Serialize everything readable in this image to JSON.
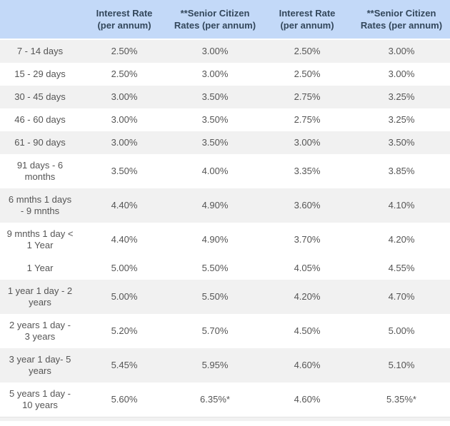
{
  "colors": {
    "header_bg": "#c3d9f8",
    "header_text": "#33475b",
    "shaded_row_bg": "#f1f1f1",
    "row_bg": "#ffffff",
    "body_text": "#555555"
  },
  "table": {
    "header": {
      "tenure_label": "",
      "columns": [
        "Interest Rate\n(per annum)",
        "**Senior Citizen\nRates (per annum)",
        "Interest Rate\n(per annum)",
        "**Senior Citizen\nRates (per annum)"
      ]
    },
    "rows": [
      {
        "tenure": "7 - 14 days",
        "values": [
          "2.50%",
          "3.00%",
          "2.50%",
          "3.00%"
        ],
        "shaded": true
      },
      {
        "tenure": "15 - 29 days",
        "values": [
          "2.50%",
          "3.00%",
          "2.50%",
          "3.00%"
        ],
        "shaded": false
      },
      {
        "tenure": "30 - 45 days",
        "values": [
          "3.00%",
          "3.50%",
          "2.75%",
          "3.25%"
        ],
        "shaded": true
      },
      {
        "tenure": "46 - 60 days",
        "values": [
          "3.00%",
          "3.50%",
          "2.75%",
          "3.25%"
        ],
        "shaded": false
      },
      {
        "tenure": "61 - 90 days",
        "values": [
          "3.00%",
          "3.50%",
          "3.00%",
          "3.50%"
        ],
        "shaded": true
      },
      {
        "tenure": "91 days - 6\nmonths",
        "values": [
          "3.50%",
          "4.00%",
          "3.35%",
          "3.85%"
        ],
        "shaded": false
      },
      {
        "tenure": "6 mnths 1 days\n- 9 mnths",
        "values": [
          "4.40%",
          "4.90%",
          "3.60%",
          "4.10%"
        ],
        "shaded": true
      },
      {
        "tenure": "9 mnths 1 day <\n1 Year",
        "values": [
          "4.40%",
          "4.90%",
          "3.70%",
          "4.20%"
        ],
        "shaded": false
      },
      {
        "tenure": "1 Year",
        "values": [
          "5.00%",
          "5.50%",
          "4.05%",
          "4.55%"
        ],
        "shaded": false
      },
      {
        "tenure": "1 year 1 day - 2\nyears",
        "values": [
          "5.00%",
          "5.50%",
          "4.20%",
          "4.70%"
        ],
        "shaded": true
      },
      {
        "tenure": "2 years 1 day -\n3 years",
        "values": [
          "5.20%",
          "5.70%",
          "4.50%",
          "5.00%"
        ],
        "shaded": false
      },
      {
        "tenure": "3 year 1 day- 5\nyears",
        "values": [
          "5.45%",
          "5.95%",
          "4.60%",
          "5.10%"
        ],
        "shaded": true
      },
      {
        "tenure": "5 years 1 day -\n10 years",
        "values": [
          "5.60%",
          "6.35%*",
          "4.60%",
          "5.35%*"
        ],
        "shaded": false
      }
    ]
  }
}
